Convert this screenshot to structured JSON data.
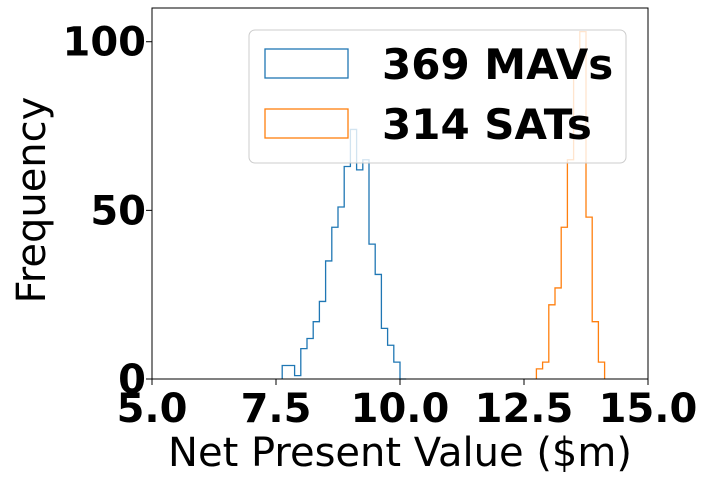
{
  "chart_data": {
    "type": "histogram",
    "xlabel": "Net Present Value ($m)",
    "ylabel": "Frequency",
    "xlim": [
      5.0,
      15.0
    ],
    "ylim": [
      0,
      110
    ],
    "xticks": [
      "5.0",
      "7.5",
      "10.0",
      "12.5",
      "15.0"
    ],
    "yticks": [
      "0",
      "50",
      "100"
    ],
    "grid": false,
    "legend_position": "upper right",
    "bin_width": 0.125,
    "series": [
      {
        "name": "369 MAVs",
        "color": "#1f77b4",
        "bin_start": 7.625,
        "counts": [
          4,
          4,
          1,
          9,
          12,
          17,
          23,
          35,
          45,
          51,
          63,
          74,
          62,
          65,
          40,
          31,
          15,
          10,
          5,
          0
        ]
      },
      {
        "name": "314 SATs",
        "color": "#ff7f0e",
        "bin_start": 12.75,
        "counts": [
          3,
          5,
          22,
          27,
          45,
          65,
          92,
          103,
          48,
          17,
          5
        ]
      }
    ]
  }
}
